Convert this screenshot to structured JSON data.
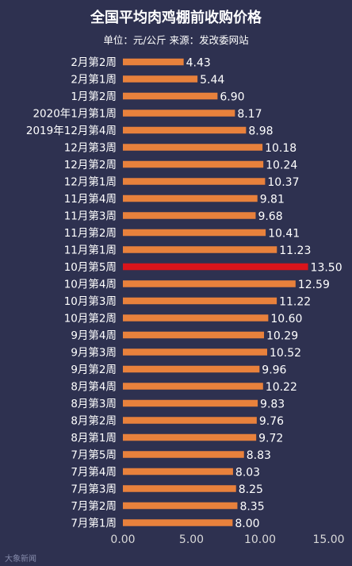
{
  "chart_data": {
    "type": "bar",
    "orientation": "horizontal",
    "title": "全国平均肉鸡棚前收购价格",
    "subtitle": "单位：元/公斤  来源：发改委网站",
    "xlim": [
      0,
      15
    ],
    "xticks": [
      "0.00",
      "5.00",
      "10.00",
      "15.00"
    ],
    "grid": false,
    "categories": [
      "2月第2周",
      "2月第1周",
      "1月第2周",
      "2020年1月第1周",
      "2019年12月第4周",
      "12月第3周",
      "12月第2周",
      "12月第1周",
      "11月第4周",
      "11月第3周",
      "11月第2周",
      "11月第1周",
      "10月第5周",
      "10月第4周",
      "10月第3周",
      "10月第2周",
      "9月第4周",
      "9月第3周",
      "9月第2周",
      "8月第4周",
      "8月第3周",
      "8月第2周",
      "8月第1周",
      "7月第5周",
      "7月第4周",
      "7月第3周",
      "7月第2周",
      "7月第1周"
    ],
    "values": [
      4.43,
      5.44,
      6.9,
      8.17,
      8.98,
      10.18,
      10.24,
      10.37,
      9.81,
      9.68,
      10.41,
      11.23,
      13.5,
      12.59,
      11.22,
      10.6,
      10.29,
      10.52,
      9.96,
      10.22,
      9.83,
      9.76,
      9.72,
      8.83,
      8.03,
      8.25,
      8.35,
      8.0
    ],
    "labels": [
      "4.43",
      "5.44",
      "6.90",
      "8.17",
      "8.98",
      "10.18",
      "10.24",
      "10.37",
      "9.81",
      "9.68",
      "10.41",
      "11.23",
      "13.50",
      "12.59",
      "11.22",
      "10.60",
      "10.29",
      "10.52",
      "9.96",
      "10.22",
      "9.83",
      "9.76",
      "9.72",
      "8.83",
      "8.03",
      "8.25",
      "8.35",
      "8.00"
    ],
    "highlight_index": 12,
    "colors": {
      "background": "#2e3150",
      "bar": "#e8813c",
      "highlight": "#d9141b",
      "text": "#ffffff",
      "axis": "#d8d8d8"
    }
  },
  "watermark": "大象新闻"
}
